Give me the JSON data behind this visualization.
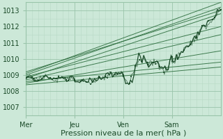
{
  "xlabel": "Pression niveau de la mer( hPa )",
  "bg_color": "#cce8d8",
  "grid_color_major": "#99c4aa",
  "grid_color_minor": "#b8d9c5",
  "line_color": "#2d6e3e",
  "line_color_dark": "#1a4a28",
  "xlim": [
    0,
    96
  ],
  "ylim": [
    1006.5,
    1013.5
  ],
  "yticks": [
    1007,
    1008,
    1009,
    1010,
    1011,
    1012,
    1013
  ],
  "xtick_positions": [
    0,
    24,
    48,
    72
  ],
  "xtick_labels": [
    "Mer",
    "Jeu",
    "Ven",
    "Sam"
  ],
  "xlabel_fontsize": 8,
  "tick_fontsize": 7
}
